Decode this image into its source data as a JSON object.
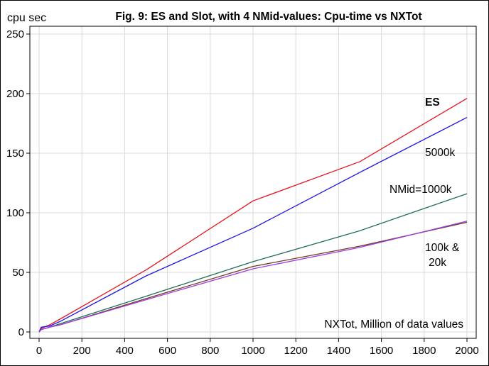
{
  "chart_data": {
    "type": "line",
    "title": "Fig. 9:  ES  and  Slot, with 4 NMid-values:  Cpu-time  vs  NXTot",
    "ylabel": "cpu sec",
    "xlabel": "NXTot, Million of data values",
    "xlim": [
      0,
      2000
    ],
    "ylim": [
      0,
      250
    ],
    "xticks": [
      0,
      200,
      400,
      600,
      800,
      1000,
      1200,
      1400,
      1600,
      1800,
      2000
    ],
    "yticks": [
      0,
      50,
      100,
      150,
      200,
      250
    ],
    "grid": true,
    "series": [
      {
        "name": "ES",
        "color": "#e8141e",
        "x": [
          0,
          10,
          50,
          100,
          500,
          1000,
          1500,
          2000
        ],
        "y": [
          0,
          3,
          6,
          11,
          52,
          110,
          143,
          196
        ]
      },
      {
        "name": "5000k",
        "color": "#1e14e6",
        "x": [
          0,
          10,
          50,
          100,
          500,
          1000,
          1500,
          2000
        ],
        "y": [
          0,
          4,
          5,
          9,
          47,
          87,
          134,
          180
        ]
      },
      {
        "name": "1000k",
        "color": "#1e6e5a",
        "x": [
          0,
          10,
          50,
          100,
          500,
          1000,
          1500,
          2000
        ],
        "y": [
          0,
          2,
          4,
          7,
          30,
          59,
          85,
          116
        ]
      },
      {
        "name": "100k",
        "color": "#6e3c28",
        "x": [
          0,
          10,
          50,
          100,
          500,
          1000,
          1500,
          2000
        ],
        "y": [
          0,
          2,
          4,
          6,
          28,
          55,
          72,
          92
        ]
      },
      {
        "name": "20k",
        "color": "#a03cdc",
        "x": [
          0,
          10,
          50,
          100,
          500,
          1000,
          1500,
          2000
        ],
        "y": [
          0,
          2,
          4,
          6,
          27,
          53,
          71,
          93
        ]
      }
    ],
    "annotations": {
      "es": "ES",
      "nmid_prefix": "NMid=",
      "label_5000k": "5000k",
      "label_1000k": "1000k",
      "label_100k": "100k &",
      "label_20k": "20k"
    }
  }
}
